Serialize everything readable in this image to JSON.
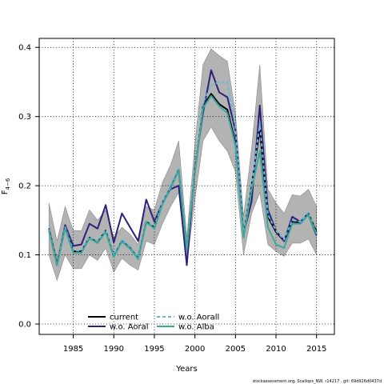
{
  "chart_data": {
    "type": "line",
    "title": "",
    "xlabel": "Years",
    "ylabel": "F",
    "ylabel_sub": "4−6",
    "xlim": [
      1980.8,
      2017.2
    ],
    "ylim": [
      -0.015,
      0.413
    ],
    "x_ticks": [
      1985,
      1990,
      1995,
      2000,
      2005,
      2010,
      2015
    ],
    "x_tick_labels": [
      "1985",
      "1990",
      "1995",
      "2000",
      "2005",
      "2010",
      "2015"
    ],
    "y_ticks": [
      0.0,
      0.1,
      0.2,
      0.3,
      0.4
    ],
    "y_tick_labels": [
      "0.0",
      "0.1",
      "0.2",
      "0.3",
      "0.4"
    ],
    "grid": true,
    "legend_position": "bottom-left",
    "x": [
      1982,
      1983,
      1984,
      1985,
      1986,
      1987,
      1988,
      1989,
      1990,
      1991,
      1992,
      1993,
      1994,
      1995,
      1996,
      1997,
      1998,
      1999,
      2000,
      2001,
      2002,
      2003,
      2004,
      2005,
      2006,
      2007,
      2008,
      2009,
      2010,
      2011,
      2012,
      2013,
      2014,
      2015
    ],
    "confidence_band": {
      "upper": [
        0.175,
        0.12,
        0.17,
        0.135,
        0.135,
        0.165,
        0.15,
        0.165,
        0.125,
        0.14,
        0.13,
        0.115,
        0.17,
        0.165,
        0.205,
        0.23,
        0.265,
        0.125,
        0.26,
        0.375,
        0.398,
        0.388,
        0.38,
        0.305,
        0.155,
        0.255,
        0.375,
        0.195,
        0.175,
        0.16,
        0.187,
        0.185,
        0.195,
        0.17
      ],
      "lower": [
        0.1,
        0.063,
        0.1,
        0.08,
        0.08,
        0.1,
        0.092,
        0.11,
        0.075,
        0.095,
        0.085,
        0.078,
        0.12,
        0.115,
        0.145,
        0.17,
        0.19,
        0.085,
        0.18,
        0.265,
        0.285,
        0.265,
        0.25,
        0.22,
        0.1,
        0.16,
        0.19,
        0.115,
        0.105,
        0.098,
        0.117,
        0.117,
        0.123,
        0.1
      ],
      "color": "#999999"
    },
    "series": [
      {
        "name": "current",
        "color": "#000000",
        "style": "solid",
        "values": [
          0.138,
          0.088,
          0.14,
          0.105,
          0.105,
          0.125,
          0.118,
          0.135,
          0.098,
          0.12,
          0.11,
          0.095,
          0.148,
          0.14,
          0.175,
          0.197,
          0.223,
          0.108,
          0.22,
          0.315,
          0.333,
          0.318,
          0.31,
          0.262,
          0.128,
          0.2,
          0.282,
          0.155,
          0.133,
          0.12,
          0.148,
          0.147,
          0.16,
          0.133
        ]
      },
      {
        "name": "w.o. Aoral",
        "color": "#2e1f7a",
        "style": "solid",
        "values": [
          0.138,
          0.085,
          0.143,
          0.113,
          0.115,
          0.145,
          0.138,
          0.172,
          0.118,
          0.16,
          0.14,
          0.12,
          0.18,
          0.148,
          0.175,
          0.195,
          0.2,
          0.085,
          0.225,
          0.305,
          0.367,
          0.335,
          0.328,
          0.28,
          0.13,
          0.178,
          0.316,
          0.165,
          0.135,
          0.12,
          0.155,
          0.148,
          0.158,
          0.128
        ]
      },
      {
        "name": "w.o. Aorall",
        "color": "#6ab8de",
        "style": "dashed",
        "values": [
          0.137,
          0.087,
          0.14,
          0.106,
          0.106,
          0.126,
          0.12,
          0.136,
          0.1,
          0.122,
          0.112,
          0.097,
          0.148,
          0.141,
          0.176,
          0.2,
          0.225,
          0.11,
          0.222,
          0.32,
          0.345,
          0.35,
          0.35,
          0.285,
          0.13,
          0.2,
          0.29,
          0.158,
          0.135,
          0.122,
          0.15,
          0.148,
          0.162,
          0.13
        ]
      },
      {
        "name": "w.o. Alba",
        "color": "#3aa89a",
        "style": "solid",
        "values": [
          0.135,
          0.085,
          0.138,
          0.103,
          0.103,
          0.124,
          0.117,
          0.133,
          0.097,
          0.119,
          0.109,
          0.094,
          0.147,
          0.138,
          0.173,
          0.196,
          0.222,
          0.107,
          0.218,
          0.312,
          0.33,
          0.315,
          0.305,
          0.258,
          0.125,
          0.195,
          0.25,
          0.14,
          0.115,
          0.11,
          0.145,
          0.145,
          0.158,
          0.13
        ]
      }
    ]
  },
  "footer_note": "stockassessment.org, Scallops_NW, r14217 , git: 69d926d0437d"
}
